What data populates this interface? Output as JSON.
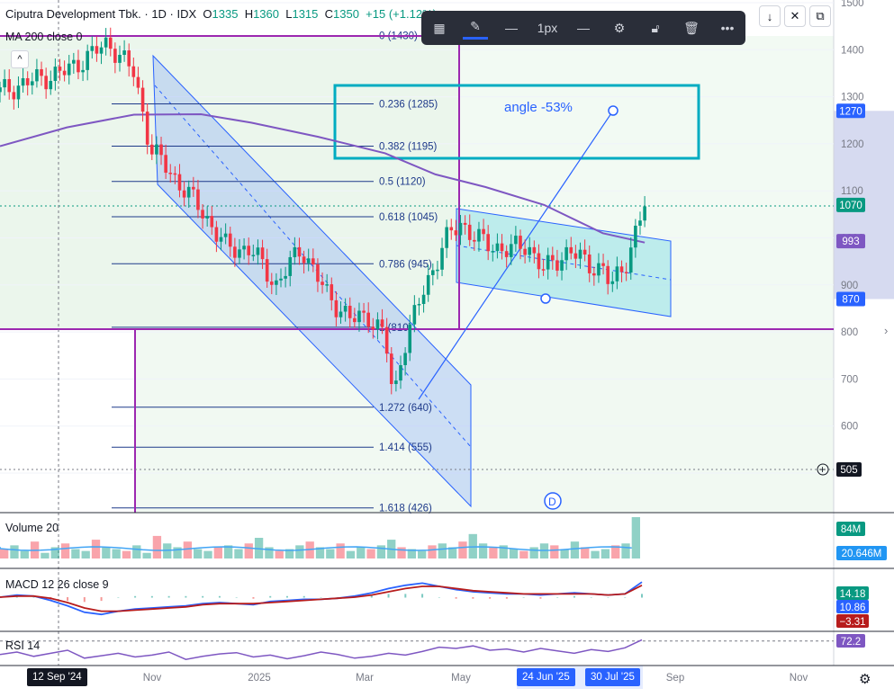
{
  "header": {
    "symbol": "Ciputra Development Tbk. · 1D · IDX",
    "open_label": "O",
    "open": "1335",
    "high_label": "H",
    "high": "1360",
    "low_label": "L",
    "low": "1315",
    "close_label": "C",
    "close": "1350",
    "change": "+15 (+1.12%)"
  },
  "indicators": {
    "ma": "MA 200 close 0",
    "volume": "Volume 20",
    "macd": "MACD 12 26 close 9",
    "rsi": "RSI 14"
  },
  "toolbar": {
    "stroke_width": "1px",
    "icons": [
      "layout-icon",
      "pencil-icon",
      "line-style-icon",
      "line-width-icon",
      "gear-icon",
      "unlock-icon",
      "trash-icon",
      "more-icon"
    ]
  },
  "window_buttons": [
    "down-arrow-icon",
    "close-icon",
    "copy-icon"
  ],
  "colors": {
    "up": "#089981",
    "down": "#f23645",
    "ma": "#7e57c2",
    "fib": "#1e3a8a",
    "channel": "#2962ff",
    "box": "#00acc1",
    "purple_line": "#9c27b0",
    "green_zone": "#e8f5e9"
  },
  "annotations": {
    "angle": "angle -53%",
    "event_marker": "D"
  },
  "chart_data": [
    {
      "type": "candlestick",
      "title": "Ciputra Development Tbk. · 1D · IDX",
      "price_axis": {
        "ticks": [
          1500,
          1400,
          1300,
          1200,
          1100,
          1000,
          900,
          800,
          700,
          600,
          500
        ],
        "labels": [
          "1500",
          "1400",
          "1300",
          "1200",
          "1100",
          "1000",
          "900",
          "800",
          "700",
          "600",
          "500"
        ],
        "range": [
          420,
          1500
        ]
      },
      "time_axis": {
        "labels": [
          "Nov",
          "2025",
          "Mar",
          "May",
          "Sep",
          "Nov"
        ],
        "highlighted": [
          "12 Sep '24",
          "24 Jun '25",
          "30 Jul '25"
        ]
      },
      "price_tags": [
        {
          "value": "1270",
          "color": "#2962ff"
        },
        {
          "value": "1070",
          "color": "#089981"
        },
        {
          "value": "993",
          "color": "#7e57c2"
        },
        {
          "value": "870",
          "color": "#2962ff"
        },
        {
          "value": "505",
          "color": "#131722"
        }
      ],
      "fibonacci": [
        {
          "ratio": "0",
          "price": 1430,
          "label": "0 (1430)"
        },
        {
          "ratio": "0.236",
          "price": 1285,
          "label": "0.236 (1285)"
        },
        {
          "ratio": "0.382",
          "price": 1195,
          "label": "0.382 (1195)"
        },
        {
          "ratio": "0.5",
          "price": 1120,
          "label": "0.5 (1120)"
        },
        {
          "ratio": "0.618",
          "price": 1045,
          "label": "0.618 (1045)"
        },
        {
          "ratio": "0.786",
          "price": 945,
          "label": "0.786 (945)"
        },
        {
          "ratio": "1",
          "price": 810,
          "label": "1 (810)"
        },
        {
          "ratio": "1.272",
          "price": 640,
          "label": "1.272 (640)"
        },
        {
          "ratio": "1.414",
          "price": 555,
          "label": "1.414 (555)"
        },
        {
          "ratio": "1.618",
          "price": 426,
          "label": "1.618 (426)"
        }
      ],
      "ma200_path": [
        {
          "t": 0,
          "v": 1195
        },
        {
          "t": 0.08,
          "v": 1235
        },
        {
          "t": 0.16,
          "v": 1262
        },
        {
          "t": 0.24,
          "v": 1263
        },
        {
          "t": 0.3,
          "v": 1245
        },
        {
          "t": 0.38,
          "v": 1215
        },
        {
          "t": 0.46,
          "v": 1180
        },
        {
          "t": 0.52,
          "v": 1135
        },
        {
          "t": 0.58,
          "v": 1108
        },
        {
          "t": 0.65,
          "v": 1070
        },
        {
          "t": 0.72,
          "v": 1010
        },
        {
          "t": 0.77,
          "v": 990
        }
      ],
      "close_path": [
        {
          "t": 0,
          "v": 1310
        },
        {
          "t": 0.04,
          "v": 1335
        },
        {
          "t": 0.08,
          "v": 1355
        },
        {
          "t": 0.1,
          "v": 1380
        },
        {
          "t": 0.13,
          "v": 1415
        },
        {
          "t": 0.16,
          "v": 1350
        },
        {
          "t": 0.18,
          "v": 1190
        },
        {
          "t": 0.21,
          "v": 1125
        },
        {
          "t": 0.24,
          "v": 1060
        },
        {
          "t": 0.27,
          "v": 980
        },
        {
          "t": 0.3,
          "v": 975
        },
        {
          "t": 0.33,
          "v": 900
        },
        {
          "t": 0.36,
          "v": 980
        },
        {
          "t": 0.39,
          "v": 880
        },
        {
          "t": 0.42,
          "v": 825
        },
        {
          "t": 0.44,
          "v": 835
        },
        {
          "t": 0.46,
          "v": 790
        },
        {
          "t": 0.47,
          "v": 650
        },
        {
          "t": 0.48,
          "v": 760
        },
        {
          "t": 0.5,
          "v": 860
        },
        {
          "t": 0.53,
          "v": 990
        },
        {
          "t": 0.55,
          "v": 1030
        },
        {
          "t": 0.58,
          "v": 985
        },
        {
          "t": 0.61,
          "v": 975
        },
        {
          "t": 0.63,
          "v": 985
        },
        {
          "t": 0.65,
          "v": 930
        },
        {
          "t": 0.68,
          "v": 975
        },
        {
          "t": 0.7,
          "v": 945
        },
        {
          "t": 0.72,
          "v": 935
        },
        {
          "t": 0.73,
          "v": 895
        },
        {
          "t": 0.75,
          "v": 960
        },
        {
          "t": 0.77,
          "v": 1070
        }
      ]
    },
    {
      "type": "bar",
      "title": "Volume 20",
      "latest": "84M",
      "ma_value": "20.646M",
      "values": [
        5,
        7,
        4,
        9,
        3,
        6,
        8,
        5,
        4,
        10,
        6,
        5,
        4,
        7,
        3,
        12,
        8,
        6,
        9,
        5,
        4,
        6,
        7,
        5,
        8,
        11,
        6,
        4,
        5,
        7,
        9,
        6,
        5,
        8,
        4,
        6,
        5,
        7,
        10,
        6,
        5,
        4,
        7,
        8,
        6,
        9,
        13,
        8,
        6,
        7,
        5,
        4,
        6,
        8,
        7,
        5,
        9,
        6,
        4,
        5,
        7,
        8,
        22
      ]
    },
    {
      "type": "line",
      "title": "MACD 12 26 close 9",
      "values_shown": [
        "14.18",
        "10.86",
        "−3.31"
      ],
      "macd": [
        0,
        2,
        1,
        -3,
        -8,
        -14,
        -16,
        -13,
        -11,
        -10,
        -9,
        -8,
        -6,
        -5,
        -6,
        -7,
        -4,
        -3,
        -2,
        -2,
        -1,
        1,
        4,
        8,
        11,
        13,
        10,
        7,
        5,
        4,
        3,
        3,
        2,
        3,
        4,
        3,
        2,
        3,
        14
      ],
      "signal": [
        0,
        1,
        1,
        -1,
        -5,
        -10,
        -13,
        -13,
        -12,
        -11,
        -10,
        -9,
        -7,
        -6,
        -6,
        -6,
        -5,
        -4,
        -3,
        -2,
        -1,
        0,
        2,
        5,
        8,
        10,
        10,
        8,
        6,
        5,
        4,
        3,
        3,
        3,
        3,
        3,
        2,
        3,
        11
      ]
    },
    {
      "type": "line",
      "title": "RSI 14",
      "value": "72.2",
      "values": [
        48,
        52,
        45,
        50,
        55,
        42,
        46,
        50,
        44,
        47,
        52,
        40,
        45,
        49,
        51,
        44,
        47,
        41,
        46,
        52,
        48,
        42,
        45,
        50,
        47,
        53,
        60,
        58,
        62,
        55,
        57,
        52,
        58,
        54,
        50,
        56,
        53,
        59,
        72
      ]
    }
  ]
}
